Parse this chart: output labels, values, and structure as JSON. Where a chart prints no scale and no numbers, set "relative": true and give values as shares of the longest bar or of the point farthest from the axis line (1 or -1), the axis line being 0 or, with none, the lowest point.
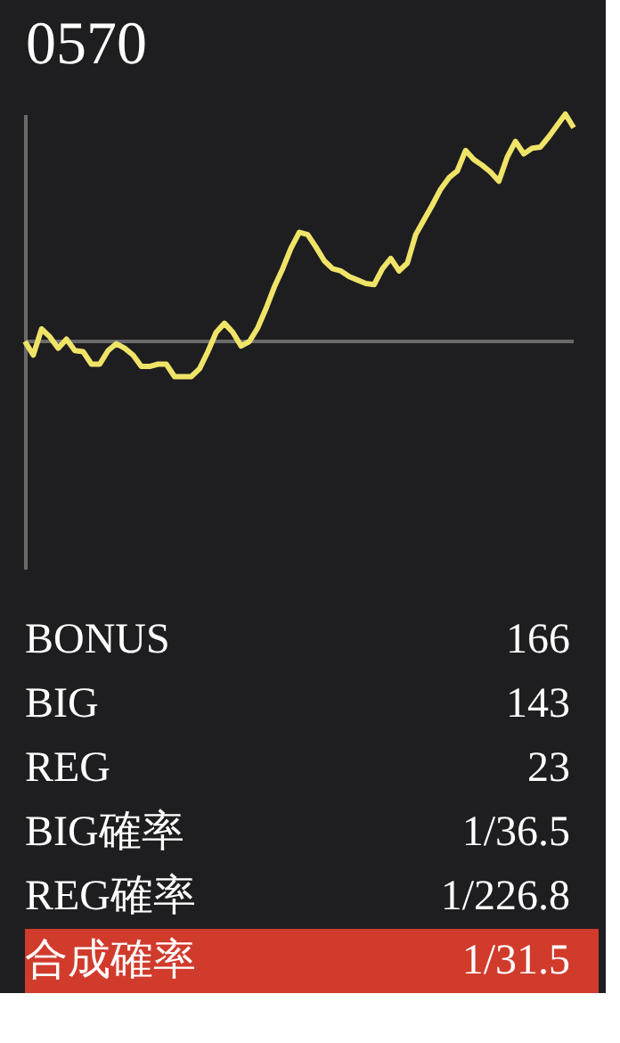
{
  "chart_data": [
    {
      "type": "line",
      "title": "0570",
      "relative": true,
      "categories": [
        null,
        null,
        null,
        null,
        null,
        null,
        null,
        null,
        null,
        null,
        null,
        null,
        null,
        null,
        null,
        null,
        null,
        null,
        null,
        null,
        null,
        null,
        null,
        null,
        null,
        null,
        null,
        null,
        null,
        null,
        null,
        null,
        null,
        null,
        null,
        null,
        null,
        null,
        null,
        null,
        null,
        null,
        null,
        null,
        null,
        null,
        null,
        null,
        null,
        null,
        null,
        null,
        null,
        null,
        null,
        null,
        null,
        null,
        null,
        null,
        null,
        null,
        null,
        null,
        null,
        null,
        null
      ],
      "series": [
        {
          "color": "#f0e468",
          "values": [
            0,
            -0.06,
            0.055,
            0.02,
            -0.03,
            0.01,
            -0.04,
            -0.045,
            -0.1,
            -0.1,
            -0.04,
            -0.01,
            -0.03,
            -0.06,
            -0.11,
            -0.11,
            -0.1,
            -0.1,
            -0.155,
            -0.155,
            -0.155,
            -0.12,
            -0.045,
            0.04,
            0.08,
            0.04,
            -0.02,
            0,
            0.06,
            0.145,
            0.24,
            0.32,
            0.41,
            0.48,
            0.47,
            0.415,
            0.355,
            0.32,
            0.31,
            0.285,
            0.27,
            0.255,
            0.25,
            0.32,
            0.365,
            0.31,
            0.345,
            0.47,
            0.535,
            0.6,
            0.67,
            0.72,
            0.75,
            0.84,
            0.8,
            0.775,
            0.745,
            0.705,
            0.81,
            0.88,
            0.825,
            0.85,
            0.855,
            0.9,
            0.95,
            1,
            0.94
          ]
        }
      ]
    },
    {
      "type": "other",
      "annotations": [
        "BONUS",
        "166",
        "BIG",
        "143",
        "REG",
        "23",
        "BIG確率",
        "1/36.5",
        "REG確率",
        "1/226.8",
        "合成確率",
        "1/31.5"
      ],
      "colors": [
        null,
        null,
        null,
        null,
        null,
        "#d13b2c"
      ]
    }
  ]
}
